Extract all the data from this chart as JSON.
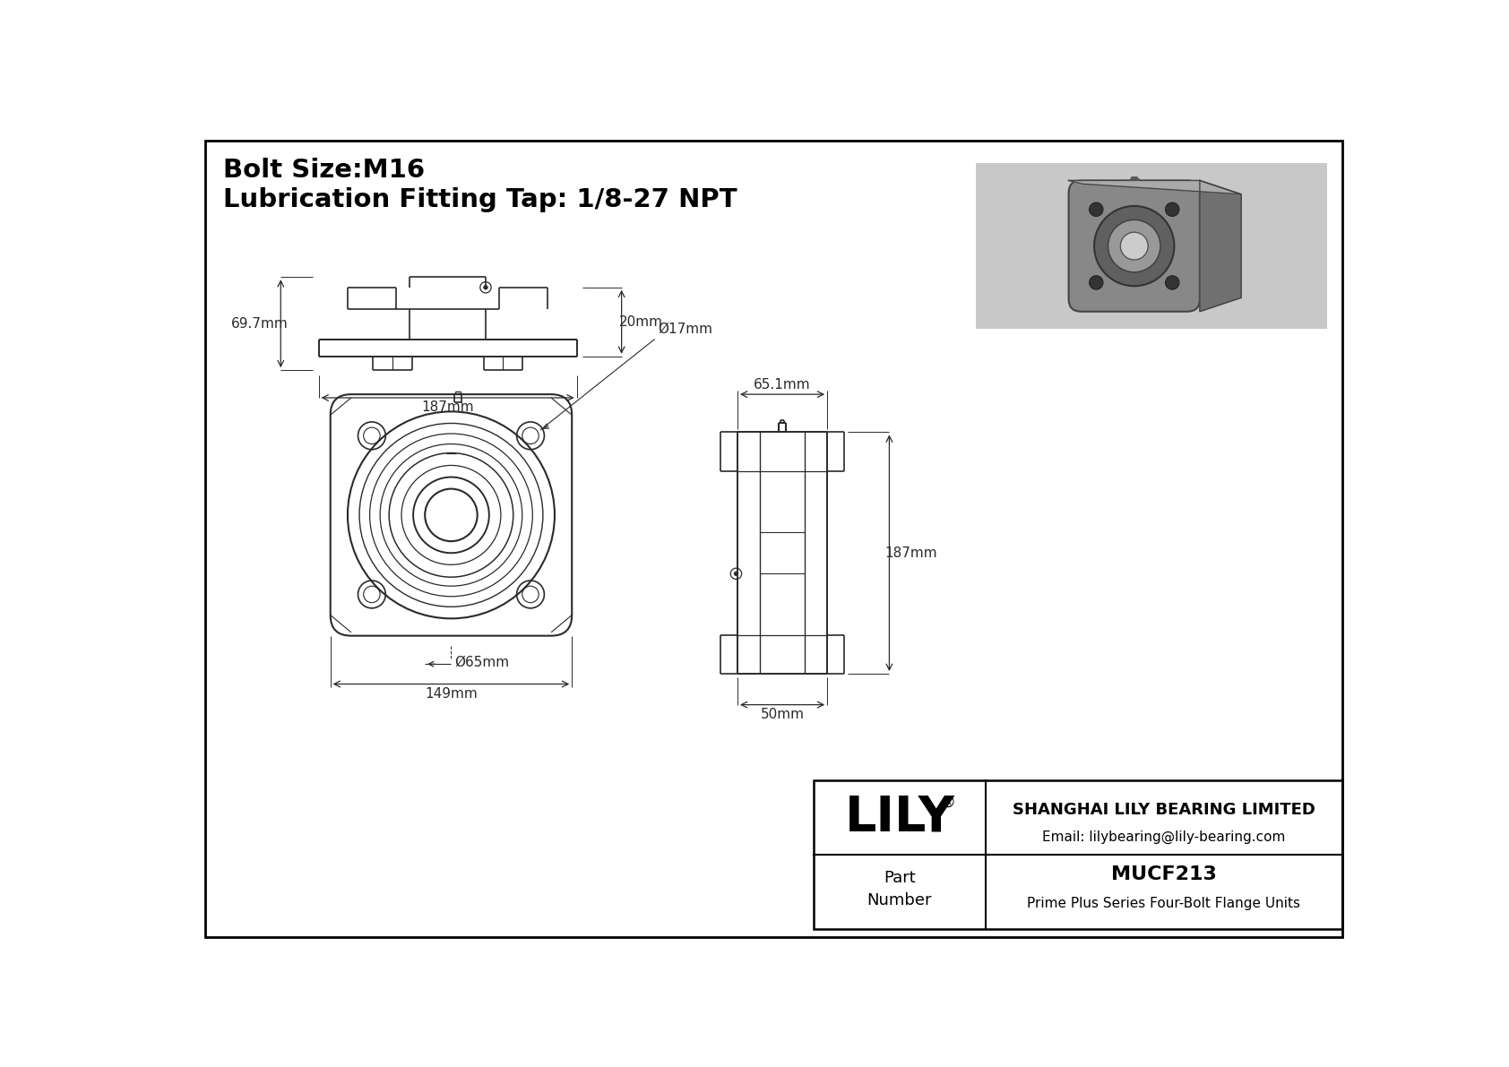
{
  "title_line1": "Bolt Size:M16",
  "title_line2": "Lubrication Fitting Tap: 1/8-27 NPT",
  "bg_color": "#ffffff",
  "line_color": "#2a2a2a",
  "dim_color": "#2a2a2a",
  "border_color": "#000000",
  "company_name": "SHANGHAI LILY BEARING LIMITED",
  "company_email": "Email: lilybearing@lily-bearing.com",
  "part_number_label": "Part\nNumber",
  "part_number": "MUCF213",
  "part_series": "Prime Plus Series Four-Bolt Flange Units",
  "logo_text": "LILY",
  "dimensions": {
    "bolt_hole_dia": "Ø17mm",
    "inner_dia": "Ø65mm",
    "width_front": "149mm",
    "height_side": "187mm",
    "width_side": "65.1mm",
    "depth_side": "50mm",
    "height_bottom": "69.7mm",
    "width_bottom": "187mm",
    "depth_bottom": "20mm"
  }
}
